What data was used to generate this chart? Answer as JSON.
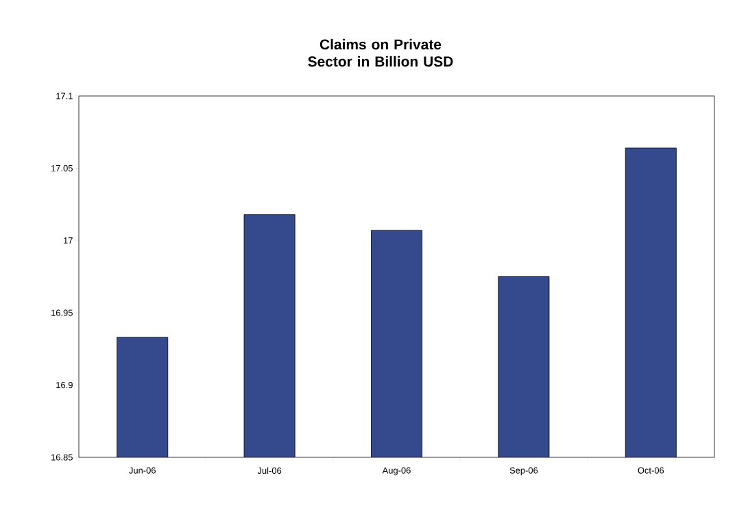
{
  "chart_data": {
    "type": "bar",
    "title": "Claims on Private Sector in Billion USD",
    "categories": [
      "Jun-06",
      "Jul-06",
      "Aug-06",
      "Sep-06",
      "Oct-06"
    ],
    "values": [
      16.933,
      17.018,
      17.007,
      16.975,
      17.064
    ],
    "color": "#344a8c",
    "ylim": [
      16.85,
      17.1
    ],
    "yticks": [
      16.85,
      16.9,
      16.95,
      17,
      17.05,
      17.1
    ],
    "grid": false
  }
}
